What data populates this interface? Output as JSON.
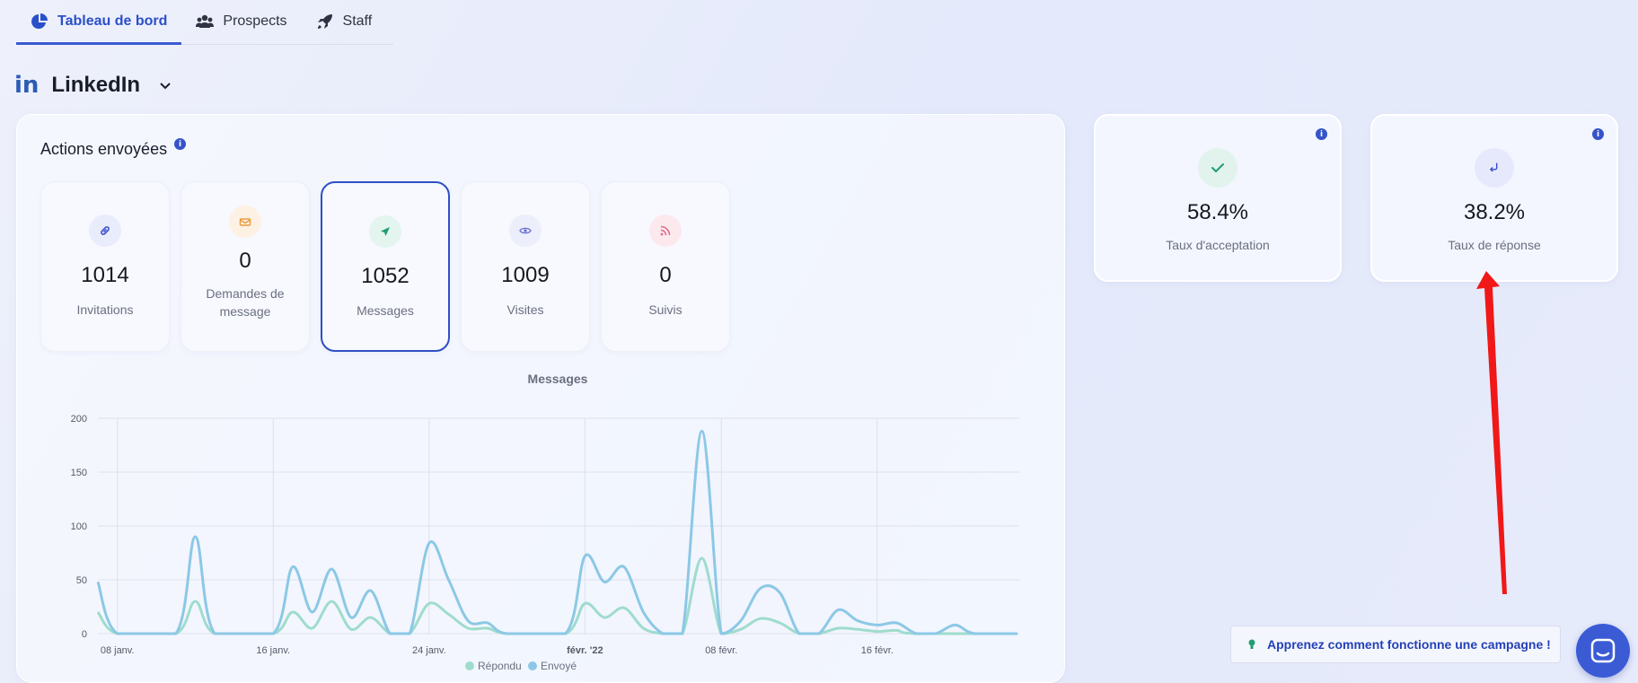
{
  "tabs": [
    {
      "label": "Tableau de bord",
      "icon": "pie-chart-icon",
      "active": true
    },
    {
      "label": "Prospects",
      "icon": "users-icon",
      "active": false
    },
    {
      "label": "Staff",
      "icon": "rocket-icon",
      "active": false
    }
  ],
  "channel": {
    "logo": "in",
    "name": "LinkedIn"
  },
  "actions": {
    "title": "Actions envoyées",
    "info": "i",
    "cards": [
      {
        "value": "1014",
        "label": "Invitations",
        "icon": "link-icon",
        "color": "#3b4fd0",
        "bg": "#e9ecfb"
      },
      {
        "value": "0",
        "label": "Demandes de message",
        "icon": "envelope-icon",
        "color": "#e89a3a",
        "bg": "#fdf1e3"
      },
      {
        "value": "1052",
        "label": "Messages",
        "icon": "send-icon",
        "color": "#1f9e70",
        "bg": "#e3f5ee"
      },
      {
        "value": "1009",
        "label": "Visites",
        "icon": "eye-icon",
        "color": "#6a6fcf",
        "bg": "#eceefb"
      },
      {
        "value": "0",
        "label": "Suivis",
        "icon": "rss-icon",
        "color": "#e26a86",
        "bg": "#fce9ee"
      }
    ]
  },
  "rates": [
    {
      "value": "58.4%",
      "label": "Taux d'acceptation",
      "icon": "check-icon",
      "color": "#1f9e70",
      "bg": "#e1f3ec"
    },
    {
      "value": "38.2%",
      "label": "Taux de réponse",
      "icon": "reply-icon",
      "color": "#3b4fd0",
      "bg": "#e6e9fb"
    }
  ],
  "learn_link": "Apprenez comment fonctionne une campagne !",
  "chart_data": {
    "type": "line",
    "title": "Messages",
    "ylim": [
      0,
      200
    ],
    "yticks": [
      0,
      50,
      100,
      150,
      200
    ],
    "xticks": [
      {
        "day": 0,
        "label": "08 janv."
      },
      {
        "day": 8,
        "label": "16 janv."
      },
      {
        "day": 16,
        "label": "24 janv."
      },
      {
        "day": 24,
        "label": "févr. '22",
        "bold": true
      },
      {
        "day": 31,
        "label": "08 févr."
      },
      {
        "day": 39,
        "label": "16 févr."
      }
    ],
    "x_range": [
      -1,
      46.2
    ],
    "series": [
      {
        "name": "Envoyé",
        "color": "#8cc8e6",
        "points": [
          [
            -1,
            48
          ],
          [
            0,
            0
          ],
          [
            3,
            0
          ],
          [
            4,
            90
          ],
          [
            5,
            0
          ],
          [
            8,
            0
          ],
          [
            9,
            62
          ],
          [
            10,
            20
          ],
          [
            11,
            60
          ],
          [
            12,
            15
          ],
          [
            13,
            40
          ],
          [
            14,
            0
          ],
          [
            15,
            0
          ],
          [
            16,
            84
          ],
          [
            17,
            50
          ],
          [
            18,
            12
          ],
          [
            19,
            10
          ],
          [
            20,
            0
          ],
          [
            23,
            0
          ],
          [
            24,
            72
          ],
          [
            25,
            48
          ],
          [
            26,
            62
          ],
          [
            27,
            20
          ],
          [
            28,
            0
          ],
          [
            29,
            0
          ],
          [
            30,
            188
          ],
          [
            31,
            0
          ],
          [
            32,
            12
          ],
          [
            33,
            42
          ],
          [
            34,
            38
          ],
          [
            35,
            0
          ],
          [
            36,
            0
          ],
          [
            37,
            22
          ],
          [
            38,
            12
          ],
          [
            39,
            8
          ],
          [
            40,
            10
          ],
          [
            41,
            0
          ],
          [
            42,
            0
          ],
          [
            43,
            8
          ],
          [
            44,
            0
          ],
          [
            46.2,
            0
          ]
        ]
      },
      {
        "name": "Répondu",
        "color": "#9fdccd",
        "points": [
          [
            -1,
            20
          ],
          [
            0,
            0
          ],
          [
            3,
            0
          ],
          [
            4,
            30
          ],
          [
            5,
            0
          ],
          [
            8,
            0
          ],
          [
            9,
            20
          ],
          [
            10,
            5
          ],
          [
            11,
            30
          ],
          [
            12,
            4
          ],
          [
            13,
            15
          ],
          [
            14,
            0
          ],
          [
            15,
            0
          ],
          [
            16,
            28
          ],
          [
            17,
            18
          ],
          [
            18,
            5
          ],
          [
            19,
            5
          ],
          [
            20,
            0
          ],
          [
            23,
            0
          ],
          [
            24,
            28
          ],
          [
            25,
            15
          ],
          [
            26,
            24
          ],
          [
            27,
            5
          ],
          [
            28,
            0
          ],
          [
            29,
            0
          ],
          [
            30,
            70
          ],
          [
            31,
            0
          ],
          [
            32,
            4
          ],
          [
            33,
            14
          ],
          [
            34,
            10
          ],
          [
            35,
            0
          ],
          [
            36,
            0
          ],
          [
            37,
            5
          ],
          [
            38,
            4
          ],
          [
            39,
            2
          ],
          [
            40,
            3
          ],
          [
            41,
            0
          ],
          [
            46.2,
            0
          ]
        ]
      }
    ],
    "legend": [
      "Répondu",
      "Envoyé"
    ]
  }
}
